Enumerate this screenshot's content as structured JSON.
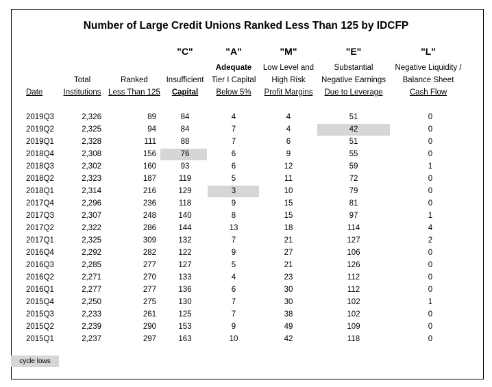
{
  "title": "Number of Large Credit Unions Ranked Less Than 125 by IDCFP",
  "letters": [
    "\"C\"",
    "\"A\"",
    "\"M\"",
    "\"E\"",
    "\"L\""
  ],
  "headers": {
    "date": "Date",
    "total_1": "Total",
    "total_2": "Institutions",
    "ranked_1": "Ranked",
    "ranked_2": "Less Than 125",
    "c_1": "Insufficient",
    "c_2": "Capital",
    "a_0": "Adequate",
    "a_1": "Tier I Capital",
    "a_2": "Below 5%",
    "m_0": "Low Level and",
    "m_1": "High Risk",
    "m_2": "Profit Margins",
    "e_0": "Substantial",
    "e_1": "Negative Earnings",
    "e_2": "Due to Leverage",
    "l_0": "Negative Liquidity /",
    "l_1": "Balance Sheet",
    "l_2": "Cash Flow"
  },
  "rows": [
    [
      "2019Q3",
      "2,326",
      "89",
      "84",
      "4",
      "4",
      "51",
      "0"
    ],
    [
      "2019Q2",
      "2,325",
      "94",
      "84",
      "7",
      "4",
      "42",
      "0"
    ],
    [
      "2019Q1",
      "2,328",
      "111",
      "88",
      "7",
      "6",
      "51",
      "0"
    ],
    [
      "2018Q4",
      "2,308",
      "156",
      "76",
      "6",
      "9",
      "55",
      "0"
    ],
    [
      "2018Q3",
      "2,302",
      "160",
      "93",
      "6",
      "12",
      "59",
      "1"
    ],
    [
      "2018Q2",
      "2,323",
      "187",
      "119",
      "5",
      "11",
      "72",
      "0"
    ],
    [
      "2018Q1",
      "2,314",
      "216",
      "129",
      "3",
      "10",
      "79",
      "0"
    ],
    [
      "2017Q4",
      "2,296",
      "236",
      "118",
      "9",
      "15",
      "81",
      "0"
    ],
    [
      "2017Q3",
      "2,307",
      "248",
      "140",
      "8",
      "15",
      "97",
      "1"
    ],
    [
      "2017Q2",
      "2,322",
      "286",
      "144",
      "13",
      "18",
      "114",
      "4"
    ],
    [
      "2017Q1",
      "2,325",
      "309",
      "132",
      "7",
      "21",
      "127",
      "2"
    ],
    [
      "2016Q4",
      "2,292",
      "282",
      "122",
      "9",
      "27",
      "106",
      "0"
    ],
    [
      "2016Q3",
      "2,285",
      "277",
      "127",
      "5",
      "21",
      "126",
      "0"
    ],
    [
      "2016Q2",
      "2,271",
      "270",
      "133",
      "4",
      "23",
      "112",
      "0"
    ],
    [
      "2016Q1",
      "2,277",
      "277",
      "136",
      "6",
      "30",
      "112",
      "0"
    ],
    [
      "2015Q4",
      "2,250",
      "275",
      "130",
      "7",
      "30",
      "102",
      "1"
    ],
    [
      "2015Q3",
      "2,233",
      "261",
      "125",
      "7",
      "38",
      "102",
      "0"
    ],
    [
      "2015Q2",
      "2,239",
      "290",
      "153",
      "9",
      "49",
      "109",
      "0"
    ],
    [
      "2015Q1",
      "2,237",
      "297",
      "163",
      "10",
      "42",
      "118",
      "0"
    ]
  ],
  "highlights": [
    {
      "row": 1,
      "col": 6
    },
    {
      "row": 3,
      "col": 3
    },
    {
      "row": 6,
      "col": 4
    }
  ],
  "legend": "cycle lows",
  "highlight_color": "#d6d6d6"
}
